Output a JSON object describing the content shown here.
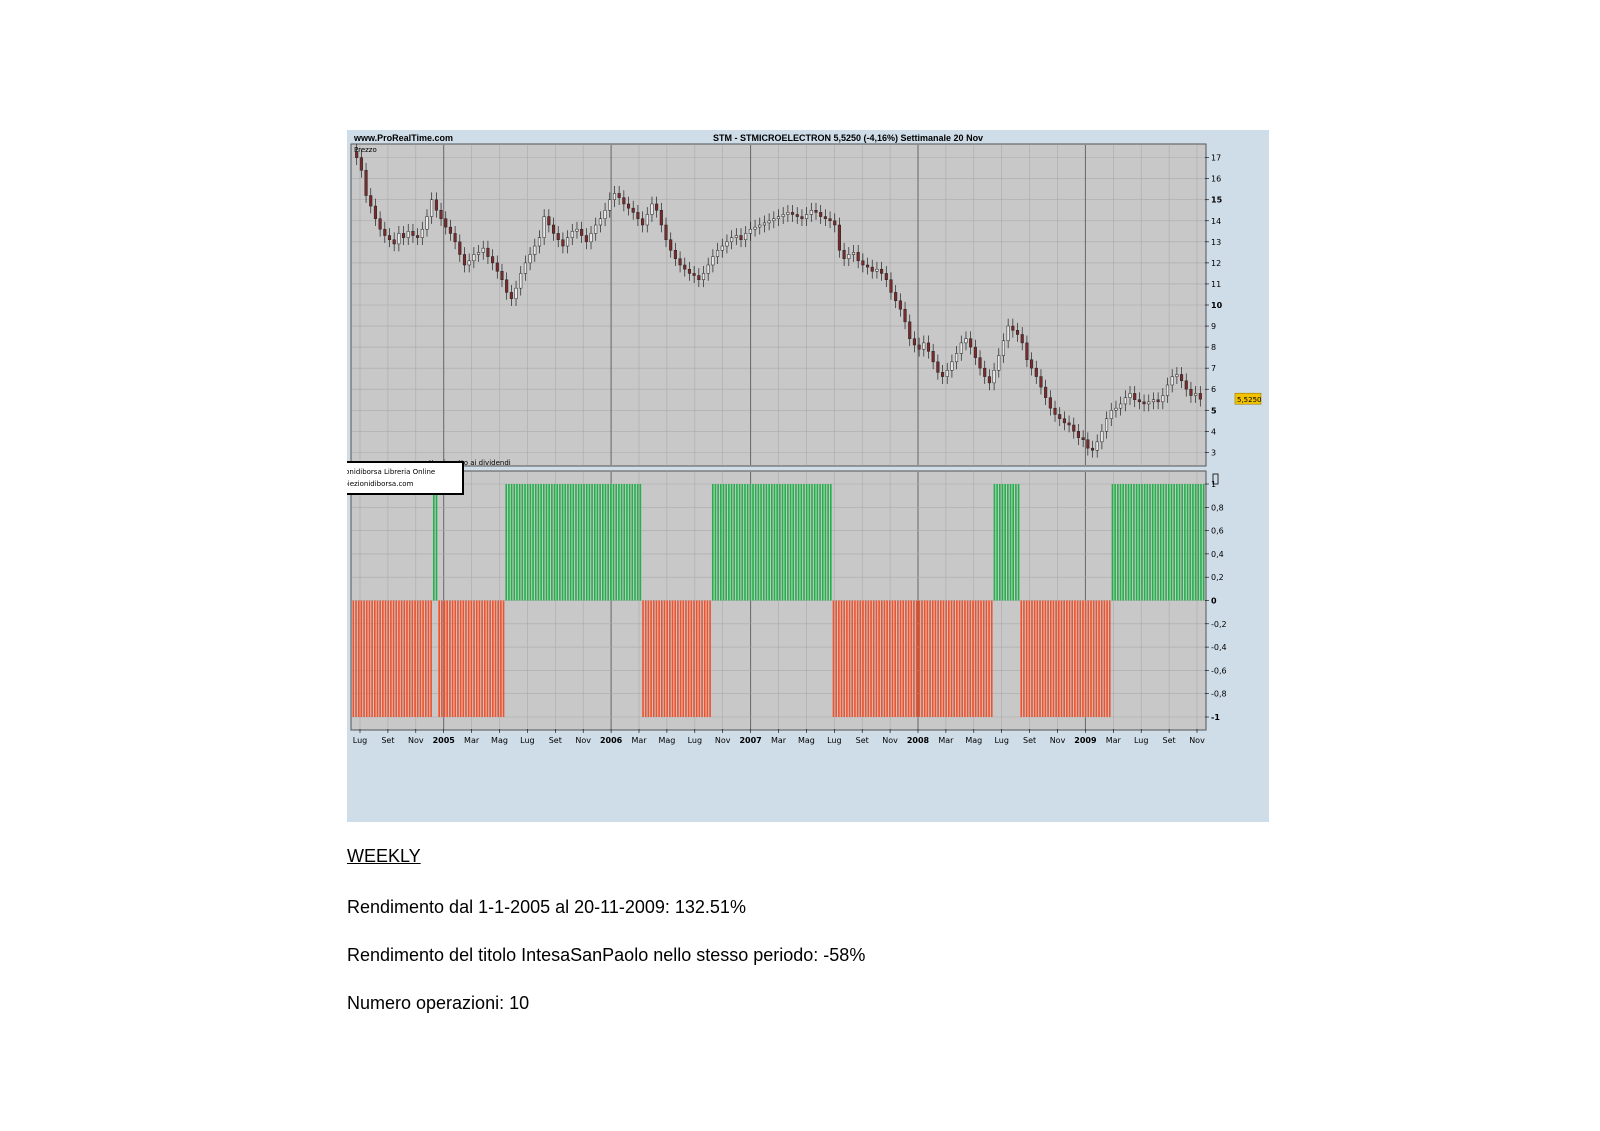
{
  "chart_header": {
    "site": "www.ProRealTime.com",
    "title": "STM - STMICROELECTRON   5,5250 (-4,16%)   Settimanale  20 Nov",
    "price_panel_label": "Prezzo",
    "adjust_note": "tto rispetto ai dividendi",
    "overlay_box_line1": "oiezionidiborsa Libreria Online",
    "overlay_box_line2": "w.proiezionidiborsa.com",
    "last_price_tag": "5,5250"
  },
  "colors": {
    "panel_bg": "#cfdde8",
    "plot_bg": "#c8c8c8",
    "grid": "#aaaaaa",
    "candle_up": "#2a7a2a",
    "candle_down": "#7a2a2a",
    "long_bar": "#22b04a",
    "short_bar": "#f0502a",
    "price_tag": "#f2c200"
  },
  "chart_data": [
    {
      "type": "line",
      "title": "STM - STMICROELECTRON   5,5250 (-4,16%)   Settimanale  20 Nov",
      "ylabel": "Prezzo",
      "xlabel": "",
      "ylim": [
        2.4,
        17.6
      ],
      "y_ticks": [
        "17",
        "16",
        "15",
        "14",
        "13",
        "12",
        "11",
        "10",
        "9",
        "8",
        "7",
        "6",
        "5",
        "4",
        "3"
      ],
      "bold_y_ticks": [
        "15",
        "10",
        "5"
      ],
      "x_labels": [
        "Lug",
        "Set",
        "Nov",
        "2005",
        "Mar",
        "Mag",
        "Lug",
        "Set",
        "Nov",
        "2006",
        "Mar",
        "Mag",
        "Lug",
        "Nov",
        "2007",
        "Mar",
        "Mag",
        "Lug",
        "Set",
        "Nov",
        "2008",
        "Mar",
        "Mag",
        "Lug",
        "Set",
        "Nov",
        "2009",
        "Mar",
        "Lug",
        "Set",
        "Nov"
      ],
      "bold_x_labels": [
        "2005",
        "2006",
        "2007",
        "2008",
        "2009"
      ],
      "grid": true,
      "last_value": 5.525,
      "series": [
        {
          "values_weekly_close": [
            17.0,
            16.4,
            15.2,
            14.7,
            14.1,
            13.6,
            13.3,
            13.1,
            12.9,
            13.4,
            13.2,
            13.5,
            13.3,
            13.2,
            13.6,
            14.2,
            15.0,
            14.5,
            14.1,
            13.7,
            13.4,
            13.0,
            12.4,
            11.9,
            12.1,
            12.4,
            12.5,
            12.7,
            12.3,
            12.0,
            11.6,
            11.2,
            10.6,
            10.3,
            10.8,
            11.5,
            12.0,
            12.4,
            12.8,
            13.2,
            14.2,
            13.8,
            13.4,
            13.1,
            12.8,
            13.2,
            13.5,
            13.6,
            13.3,
            13.0,
            13.4,
            13.8,
            14.1,
            14.5,
            15.0,
            15.3,
            15.1,
            14.8,
            14.6,
            14.4,
            14.1,
            13.8,
            14.3,
            14.8,
            14.5,
            13.8,
            13.1,
            12.6,
            12.2,
            11.9,
            11.7,
            11.5,
            11.4,
            11.2,
            11.5,
            11.9,
            12.3,
            12.6,
            12.8,
            13.0,
            13.2,
            13.3,
            13.1,
            13.4,
            13.6,
            13.7,
            13.8,
            13.9,
            14.0,
            14.1,
            14.2,
            14.3,
            14.4,
            14.3,
            14.2,
            14.1,
            14.3,
            14.5,
            14.4,
            14.2,
            14.1,
            14.0,
            13.8,
            12.6,
            12.2,
            12.4,
            12.5,
            12.1,
            11.9,
            11.8,
            11.6,
            11.7,
            11.5,
            11.2,
            10.6,
            10.2,
            9.8,
            9.2,
            8.4,
            8.1,
            7.9,
            8.2,
            7.8,
            7.3,
            6.8,
            6.6,
            6.9,
            7.3,
            7.7,
            8.2,
            8.4,
            8.0,
            7.5,
            7.0,
            6.6,
            6.3,
            6.9,
            7.6,
            8.3,
            9.0,
            8.8,
            8.6,
            8.2,
            7.4,
            7.0,
            6.6,
            6.1,
            5.6,
            5.1,
            4.8,
            4.6,
            4.4,
            4.3,
            4.0,
            3.7,
            3.6,
            3.2,
            3.1,
            3.5,
            4.0,
            4.6,
            5.0,
            5.1,
            5.3,
            5.6,
            5.8,
            5.5,
            5.4,
            5.3,
            5.4,
            5.5,
            5.4,
            5.7,
            6.2,
            6.6,
            6.7,
            6.4,
            6.0,
            5.7,
            5.8,
            5.525
          ]
        }
      ]
    },
    {
      "type": "bar",
      "title": "",
      "ylim": [
        -1,
        1
      ],
      "y_ticks": [
        "1",
        "0,8",
        "0,6",
        "0,4",
        "0,2",
        "0",
        "-0,2",
        "-0,4",
        "-0,6",
        "-0,8",
        "-1"
      ],
      "bold_y_ticks": [
        "0",
        "-1"
      ],
      "grid": true,
      "series": [
        {
          "name": "",
          "segments": [
            {
              "value": -1,
              "weeks": 30
            },
            {
              "value": 1,
              "weeks": 2
            },
            {
              "value": -1,
              "weeks": 25
            },
            {
              "value": 1,
              "weeks": 51
            },
            {
              "value": -1,
              "weeks": 26
            },
            {
              "value": 1,
              "weeks": 45
            },
            {
              "value": -1,
              "weeks": 60
            },
            {
              "value": 1,
              "weeks": 10
            },
            {
              "value": -1,
              "weeks": 34
            },
            {
              "value": 1,
              "weeks": 35
            }
          ]
        }
      ]
    }
  ],
  "notes": {
    "heading": "WEEKLY",
    "rendimento": "Rendimento dal 1-1-2005 al 20-11-2009: 132.51%",
    "confronto": "Rendimento del titolo IntesaSanPaolo nello stesso periodo: -58%",
    "operazioni": "Numero operazioni: 10"
  }
}
